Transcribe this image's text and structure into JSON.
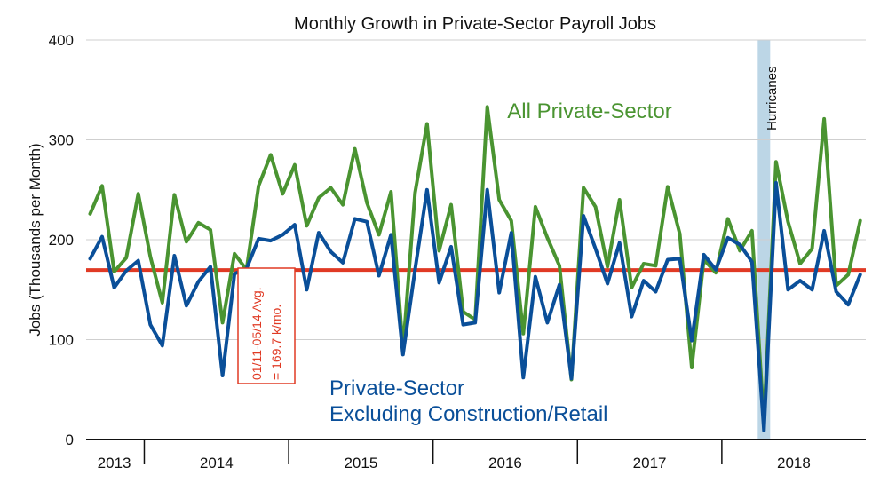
{
  "chart_data": {
    "type": "line",
    "title": "Monthly Growth in Private-Sector Payroll Jobs",
    "ylabel": "Jobs (Thousands per Month)",
    "xlabel": "",
    "ylim": [
      0,
      400
    ],
    "yticks": [
      "0",
      "100",
      "200",
      "300",
      "400"
    ],
    "x_tick_labels": [
      "2013",
      "2014",
      "2015",
      "2016",
      "2017",
      "2018"
    ],
    "grid": "horizontal",
    "start_month": "2012-08",
    "colors": {
      "all_private": "#4a9431",
      "ex_construction_retail": "#0a4f99",
      "average": "#e03a24",
      "hurricane_band": "#bcd6e6"
    },
    "series": [
      {
        "name": "All Private-Sector",
        "values": [
          226,
          254,
          168,
          182,
          246,
          183,
          137,
          245,
          198,
          217,
          210,
          117,
          186,
          170,
          254,
          285,
          246,
          275,
          214,
          242,
          252,
          235,
          291,
          237,
          205,
          248,
          90,
          247,
          316,
          189,
          235,
          128,
          120,
          333,
          240,
          219,
          106,
          233,
          202,
          174,
          60,
          252,
          233,
          173,
          240,
          152,
          176,
          174,
          253,
          206,
          72,
          180,
          167,
          221,
          189,
          209,
          17,
          278,
          218,
          176,
          191,
          321,
          154,
          165,
          219
        ]
      },
      {
        "name": "Private-Sector Excluding Construction/Retail",
        "values": [
          181,
          203,
          152,
          169,
          179,
          115,
          94,
          184,
          134,
          158,
          173,
          64,
          166,
          171,
          201,
          199,
          205,
          215,
          150,
          207,
          188,
          177,
          221,
          218,
          164,
          205,
          85,
          170,
          250,
          157,
          193,
          115,
          117,
          250,
          147,
          207,
          62,
          163,
          117,
          155,
          61,
          224,
          191,
          156,
          197,
          123,
          159,
          148,
          180,
          181,
          99,
          185,
          170,
          202,
          195,
          178,
          9,
          257,
          150,
          159,
          150,
          209,
          148,
          135,
          165
        ]
      }
    ],
    "reference_line": {
      "value": 169.7,
      "label_line1": "01/11-05/14 Avg.",
      "label_line2": "= 169.7 k/mo."
    },
    "annotations": {
      "all_private_label": "All Private-Sector",
      "ex_label_line1": "Private-Sector",
      "ex_label_line2": "Excluding Construction/Retail",
      "hurricanes": "Hurricanes",
      "hurricane_month_index": 56
    }
  }
}
